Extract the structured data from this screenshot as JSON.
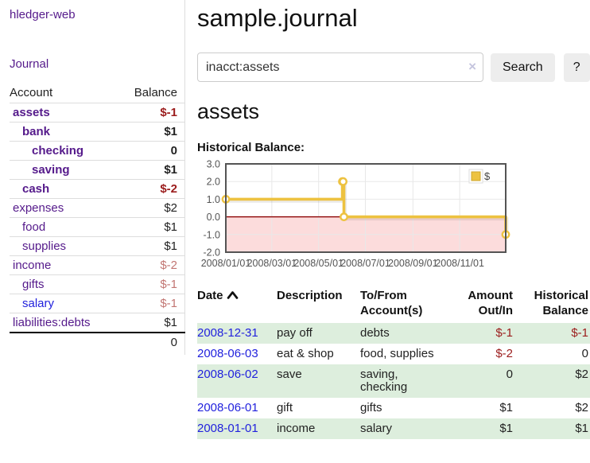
{
  "colors": {
    "link_purple": "#551a8b",
    "link_blue": "#2222dd",
    "negative_red": "#9b1c1c",
    "negative_rose": "#c27673",
    "row_stripe_green": "#ddeedd",
    "chart_line_gold": "#edc240",
    "chart_negative_fill": "#fcdcdc",
    "chart_zero_line": "#8b0000"
  },
  "sidebar": {
    "brand": "hledger-web",
    "journal_link": "Journal",
    "accounts_table": {
      "headers": {
        "account": "Account",
        "balance": "Balance"
      },
      "rows": [
        {
          "name": "assets",
          "balance": "$-1",
          "level": 0,
          "bold": true,
          "balance_style": "neg"
        },
        {
          "name": "bank",
          "balance": "$1",
          "level": 1,
          "bold": true,
          "balance_style": "normal"
        },
        {
          "name": "checking",
          "balance": "0",
          "level": 2,
          "bold": true,
          "balance_style": "normal"
        },
        {
          "name": "saving",
          "balance": "$1",
          "level": 2,
          "bold": true,
          "balance_style": "normal"
        },
        {
          "name": "cash",
          "balance": "$-2",
          "level": 1,
          "bold": true,
          "balance_style": "neg"
        },
        {
          "name": "expenses",
          "balance": "$2",
          "level": 0,
          "bold": false,
          "balance_style": "normal"
        },
        {
          "name": "food",
          "balance": "$1",
          "level": 1,
          "bold": false,
          "balance_style": "normal"
        },
        {
          "name": "supplies",
          "balance": "$1",
          "level": 1,
          "bold": false,
          "balance_style": "normal"
        },
        {
          "name": "income",
          "balance": "$-2",
          "level": 0,
          "bold": false,
          "balance_style": "rose"
        },
        {
          "name": "gifts",
          "balance": "$-1",
          "level": 1,
          "bold": false,
          "balance_style": "rose"
        },
        {
          "name": "salary",
          "balance": "$-1",
          "level": 1,
          "bold": false,
          "balance_style": "rose",
          "link_color": "blue"
        },
        {
          "name": "liabilities:debts",
          "balance": "$1",
          "level": 0,
          "bold": false,
          "balance_style": "normal"
        }
      ],
      "total": "0"
    }
  },
  "header": {
    "title": "sample.journal"
  },
  "search": {
    "value": "inacct:assets",
    "clear_icon": "×",
    "button_label": "Search",
    "help_label": "?"
  },
  "account_page": {
    "heading": "assets",
    "chart_label": "Historical Balance:"
  },
  "chart_data": {
    "type": "line",
    "steps": true,
    "title": "Historical Balance:",
    "ylim": [
      -2.0,
      3.0
    ],
    "yticks": [
      "3.0",
      "2.0",
      "1.0",
      "0.0",
      "-1.0",
      "-2.0"
    ],
    "xticks": [
      "2008/01/01",
      "2008/03/01",
      "2008/05/01",
      "2008/07/01",
      "2008/09/01",
      "2008/11/01"
    ],
    "x_range": [
      "2008-01-01",
      "2008-12-31"
    ],
    "legend": {
      "label": "$",
      "position": "top-right"
    },
    "series": [
      {
        "name": "$",
        "color": "#edc240",
        "points": [
          {
            "x": "2008-01-01",
            "y": 1
          },
          {
            "x": "2008-06-01",
            "y": 2
          },
          {
            "x": "2008-06-02",
            "y": 2
          },
          {
            "x": "2008-06-03",
            "y": 0
          },
          {
            "x": "2008-12-31",
            "y": -1
          }
        ]
      }
    ],
    "negative_region": {
      "from": 0,
      "to": -2,
      "fill": "#fcdcdc"
    },
    "zero_line_color": "#8b0000",
    "grid": true
  },
  "register": {
    "columns": [
      {
        "line1": "Date",
        "sort": "asc"
      },
      {
        "line1": "Description"
      },
      {
        "line1": "To/From",
        "line2": "Account(s)"
      },
      {
        "line1": "Amount",
        "line2": "Out/In",
        "align": "right"
      },
      {
        "line1": "Historical",
        "line2": "Balance",
        "align": "right"
      }
    ],
    "rows": [
      {
        "date": "2008-12-31",
        "description": "pay off",
        "accounts": "debts",
        "amount": "$-1",
        "amount_negative": true,
        "balance": "$-1",
        "balance_negative": true
      },
      {
        "date": "2008-06-03",
        "description": "eat & shop",
        "accounts": "food, supplies",
        "amount": "$-2",
        "amount_negative": true,
        "balance": "0",
        "balance_negative": false
      },
      {
        "date": "2008-06-02",
        "description": "save",
        "accounts": "saving, checking",
        "amount": "0",
        "amount_negative": false,
        "balance": "$2",
        "balance_negative": false
      },
      {
        "date": "2008-06-01",
        "description": "gift",
        "accounts": "gifts",
        "amount": "$1",
        "amount_negative": false,
        "balance": "$2",
        "balance_negative": false
      },
      {
        "date": "2008-01-01",
        "description": "income",
        "accounts": "salary",
        "amount": "$1",
        "amount_negative": false,
        "balance": "$1",
        "balance_negative": false
      }
    ]
  }
}
